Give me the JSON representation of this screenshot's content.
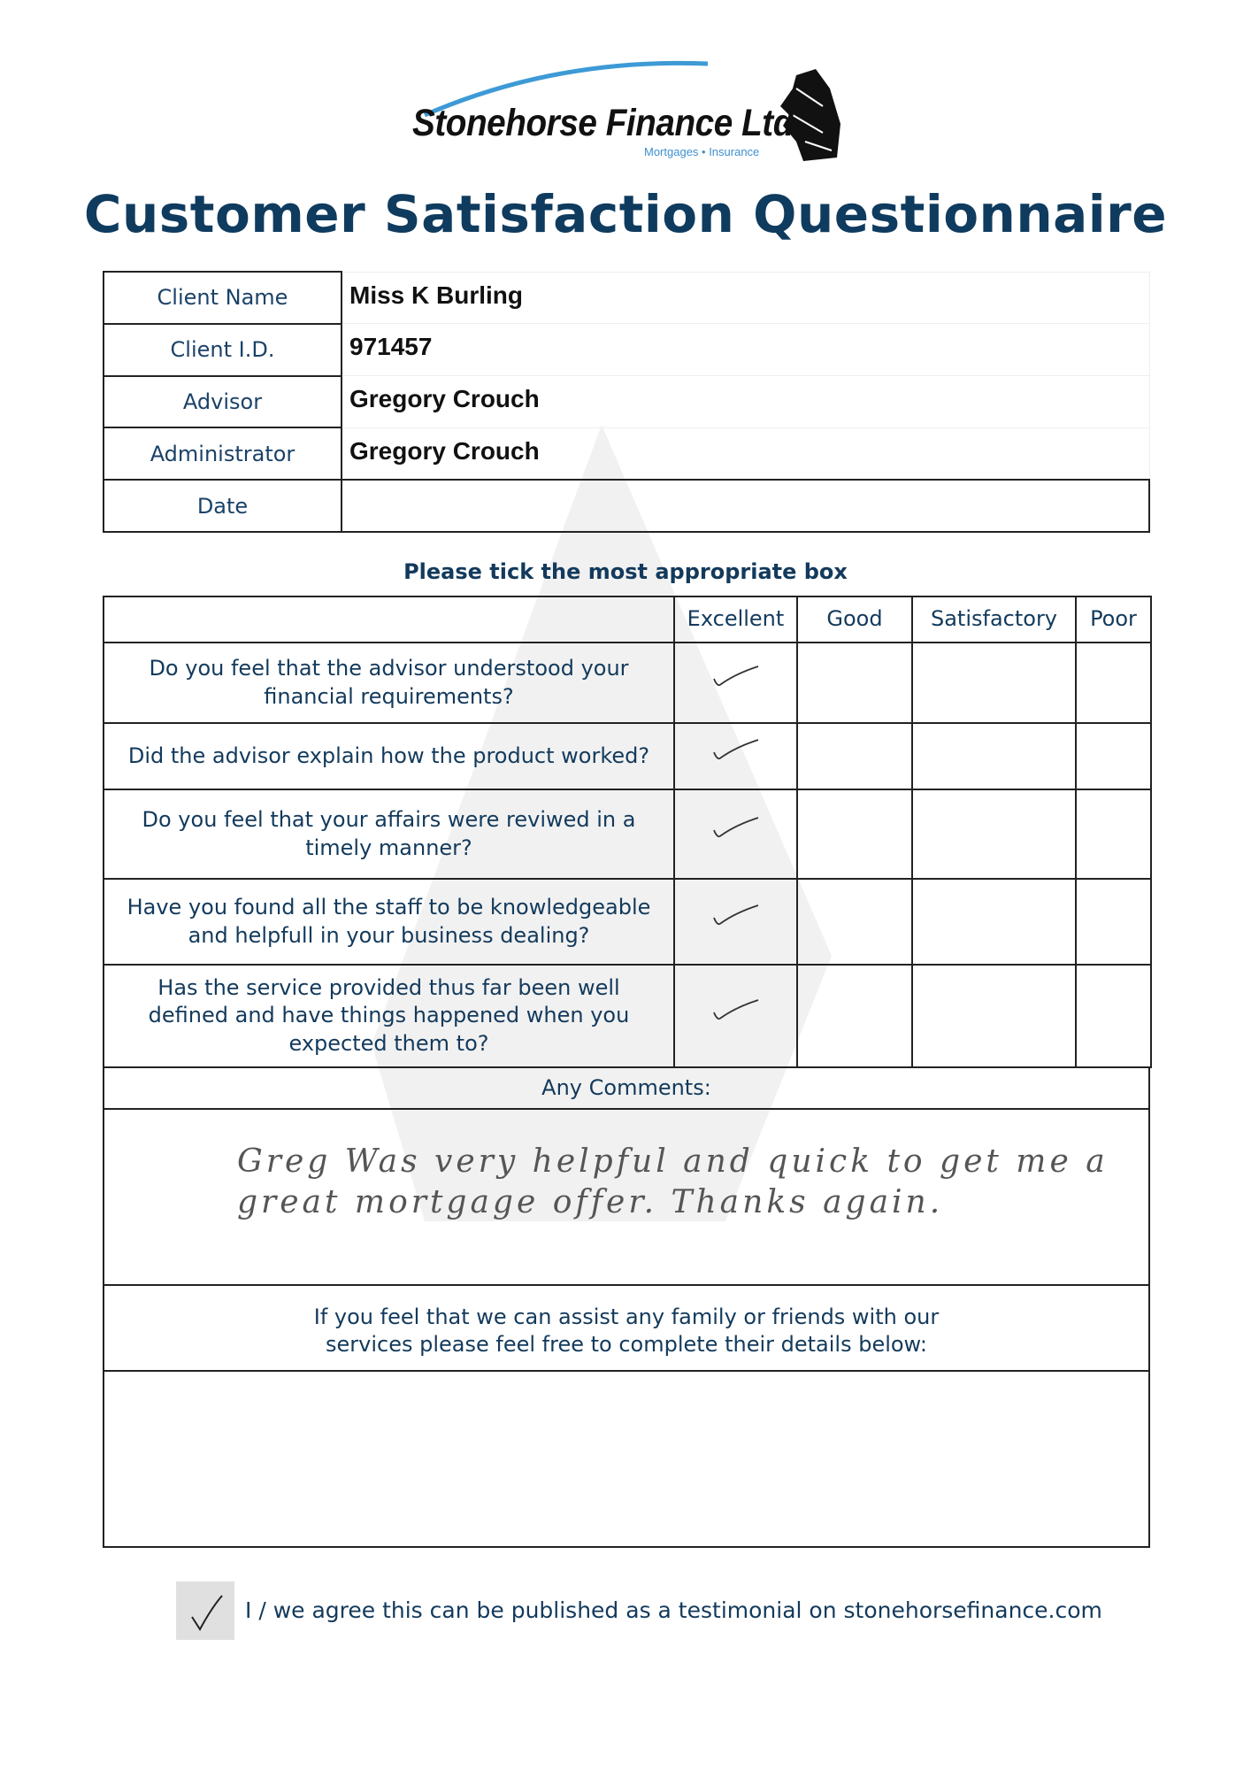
{
  "logo": {
    "company": "Stonehorse Finance Ltd",
    "tagline": "Mortgages • Insurance",
    "arc_color": "#3d9ad6"
  },
  "title": "Customer Satisfaction Questionnaire",
  "client_info": [
    {
      "label": "Client Name",
      "value": "Miss K Burling"
    },
    {
      "label": "Client I.D.",
      "value": "971457"
    },
    {
      "label": "Advisor",
      "value": "Gregory Crouch"
    },
    {
      "label": "Administrator",
      "value": "Gregory Crouch"
    },
    {
      "label": "Date",
      "value": ""
    }
  ],
  "instruction": "Please tick the most appropriate box",
  "rating_columns": [
    "Excellent",
    "Good",
    "Satisfactory",
    "Poor"
  ],
  "questions": [
    {
      "text": "Do you feel that the advisor understood your financial requirements?",
      "selected": "Excellent"
    },
    {
      "text": "Did the advisor explain how the product worked?",
      "selected": "Excellent"
    },
    {
      "text": "Do you feel that your affairs were reviwed in a timely manner?",
      "selected": "Excellent"
    },
    {
      "text": "Have you found all the staff to be knowledgeable and helpfull in your business dealing?",
      "selected": "Excellent"
    },
    {
      "text": "Has the service provided thus far been well defined and have things happened when you expected them to?",
      "selected": "Excellent"
    }
  ],
  "comments": {
    "label": "Any Comments:",
    "line1": "Greg Was very helpful and quick to get me a",
    "line2": "great mortgage offer. Thanks again."
  },
  "referral": {
    "text": "If you feel that we can assist any family or friends with our services please feel free to complete their details below:",
    "value": ""
  },
  "testimonial": {
    "checked": true,
    "label": "I / we agree this can be published as a testimonial on stonehorsefinance.com"
  }
}
